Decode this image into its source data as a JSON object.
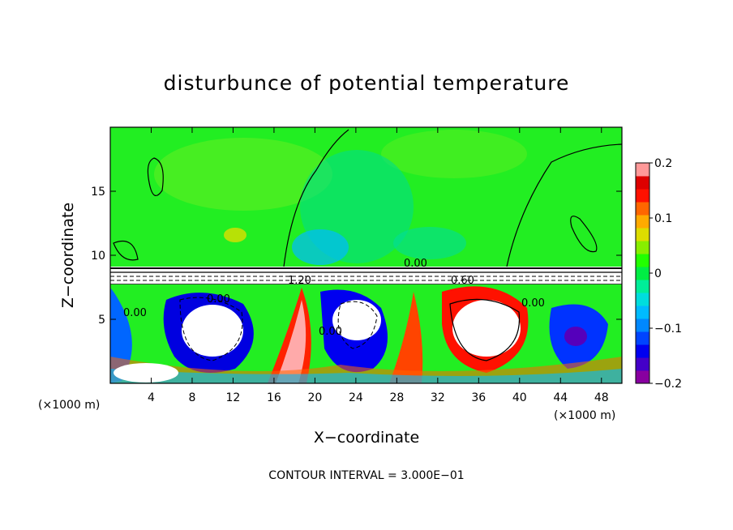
{
  "chart_data": {
    "type": "heatmap",
    "title": "disturbunce of potential temperature",
    "xlabel": "X−coordinate",
    "ylabel": "Z−coordinate",
    "x_unit": "(×1000 m)",
    "y_unit": "(×1000 m)",
    "xlim": [
      0,
      50
    ],
    "ylim": [
      0,
      20
    ],
    "x_ticks": [
      4,
      8,
      12,
      16,
      20,
      24,
      28,
      32,
      36,
      40,
      44,
      48
    ],
    "y_ticks": [
      5,
      10,
      15
    ],
    "colorbar": {
      "min": -0.2,
      "max": 0.2,
      "tick_values": [
        -0.2,
        -0.1,
        0,
        0.1,
        0.2
      ],
      "tick_labels": [
        "−0.2",
        "−0.1",
        "0",
        "0.1",
        "0.2"
      ],
      "colors": [
        "#8800a0",
        "#4400c8",
        "#0000f0",
        "#0044ff",
        "#0088ff",
        "#00bbff",
        "#00dddd",
        "#00ee99",
        "#00ee44",
        "#22ff00",
        "#88ee00",
        "#dddd00",
        "#ffaa00",
        "#ff6600",
        "#ff1100",
        "#dd0000",
        "#ff9999"
      ]
    },
    "contour_interval_note": "CONTOUR INTERVAL = 3.000E−01",
    "contour_labels": [
      "0.00",
      "0.00",
      "0.00",
      "0.00",
      "0.00",
      "1.20",
      "0.60"
    ],
    "grid": false
  }
}
